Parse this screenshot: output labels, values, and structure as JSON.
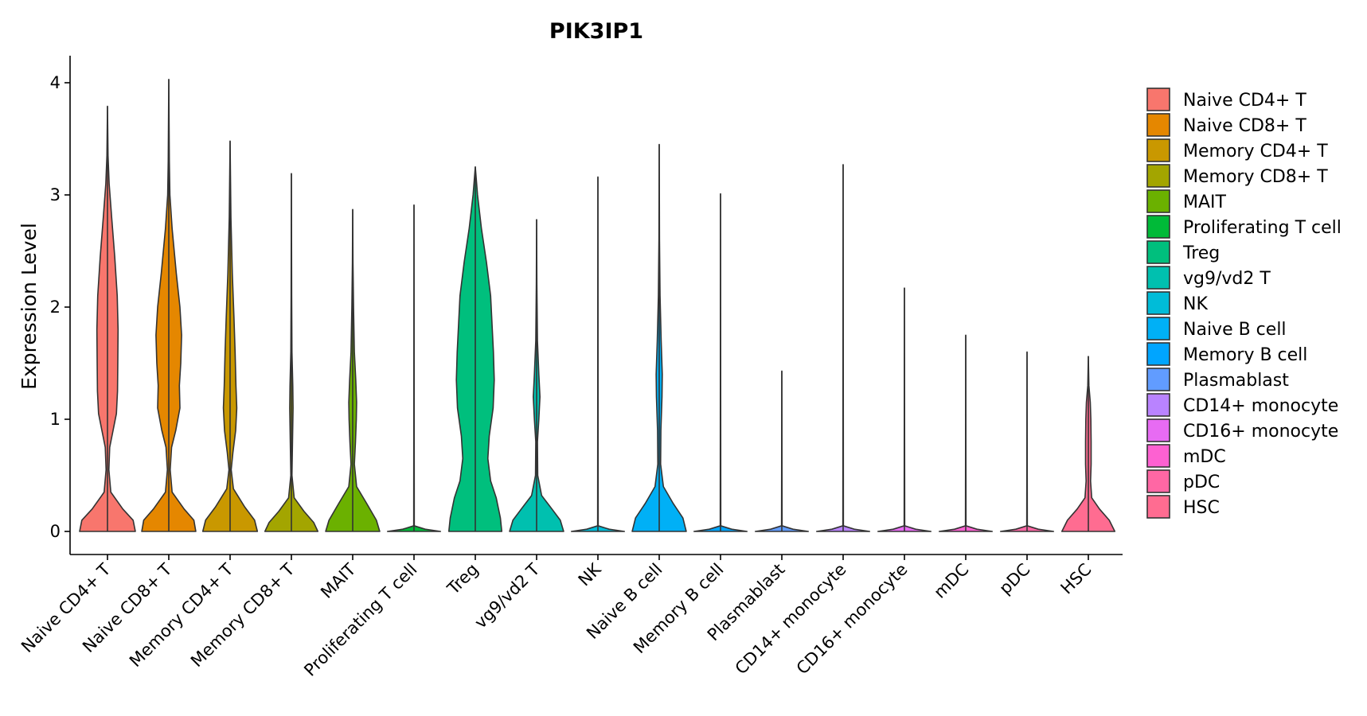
{
  "chart_data": {
    "type": "violin",
    "title": "PIK3IP1",
    "xlabel": "",
    "ylabel": "Expression Level",
    "ylim": [
      -0.2,
      4.22
    ],
    "yticks": [
      0,
      1,
      2,
      3,
      4
    ],
    "grid": false,
    "legend_position": "right",
    "categories": [
      "Naive CD4+ T",
      "Naive CD8+ T",
      "Memory CD4+ T",
      "Memory CD8+ T",
      "MAIT",
      "Proliferating T cell",
      "Treg",
      "vg9/vd2 T",
      "NK",
      "Naive B cell",
      "Memory B cell",
      "Plasmablast",
      "CD14+ monocyte",
      "CD16+ monocyte",
      "mDC",
      "pDC",
      "HSC"
    ],
    "colors": [
      "#F8766D",
      "#E58700",
      "#C99800",
      "#A3A500",
      "#6BB100",
      "#00BA38",
      "#00BF7D",
      "#00C0AF",
      "#00BCD8",
      "#00B0F6",
      "#00A5FF",
      "#619CFF",
      "#B983FF",
      "#E76BF3",
      "#FD61D1",
      "#FF67A4",
      "#FF6C91"
    ],
    "series": [
      {
        "name": "Naive CD4+ T",
        "max": 3.79,
        "profile": [
          [
            0,
            1.0
          ],
          [
            0.1,
            0.92
          ],
          [
            0.2,
            0.55
          ],
          [
            0.35,
            0.12
          ],
          [
            0.55,
            0.05
          ],
          [
            0.75,
            0.08
          ],
          [
            0.9,
            0.2
          ],
          [
            1.05,
            0.32
          ],
          [
            1.25,
            0.36
          ],
          [
            1.5,
            0.37
          ],
          [
            1.8,
            0.38
          ],
          [
            2.1,
            0.35
          ],
          [
            2.45,
            0.26
          ],
          [
            2.8,
            0.15
          ],
          [
            3.1,
            0.06
          ],
          [
            3.35,
            0.02
          ],
          [
            3.79,
            0.0
          ]
        ]
      },
      {
        "name": "Naive CD8+ T",
        "max": 4.03,
        "profile": [
          [
            0,
            0.97
          ],
          [
            0.1,
            0.9
          ],
          [
            0.2,
            0.55
          ],
          [
            0.35,
            0.12
          ],
          [
            0.55,
            0.05
          ],
          [
            0.75,
            0.1
          ],
          [
            0.9,
            0.25
          ],
          [
            1.1,
            0.4
          ],
          [
            1.3,
            0.38
          ],
          [
            1.5,
            0.43
          ],
          [
            1.75,
            0.46
          ],
          [
            2.0,
            0.4
          ],
          [
            2.3,
            0.27
          ],
          [
            2.7,
            0.12
          ],
          [
            3.0,
            0.04
          ],
          [
            3.3,
            0.02
          ],
          [
            4.03,
            0.0
          ]
        ]
      },
      {
        "name": "Memory CD4+ T",
        "max": 3.48,
        "profile": [
          [
            0,
            0.98
          ],
          [
            0.1,
            0.88
          ],
          [
            0.22,
            0.52
          ],
          [
            0.38,
            0.12
          ],
          [
            0.55,
            0.04
          ],
          [
            0.7,
            0.1
          ],
          [
            0.9,
            0.2
          ],
          [
            1.1,
            0.24
          ],
          [
            1.3,
            0.21
          ],
          [
            1.6,
            0.18
          ],
          [
            1.9,
            0.14
          ],
          [
            2.3,
            0.08
          ],
          [
            2.8,
            0.03
          ],
          [
            3.48,
            0.0
          ]
        ]
      },
      {
        "name": "Memory CD8+ T",
        "max": 3.19,
        "profile": [
          [
            0,
            0.95
          ],
          [
            0.08,
            0.8
          ],
          [
            0.18,
            0.45
          ],
          [
            0.3,
            0.1
          ],
          [
            0.5,
            0.02
          ],
          [
            0.8,
            0.04
          ],
          [
            1.1,
            0.06
          ],
          [
            1.3,
            0.05
          ],
          [
            1.6,
            0.02
          ],
          [
            2.1,
            0.01
          ],
          [
            3.19,
            0.0
          ]
        ]
      },
      {
        "name": "MAIT",
        "max": 2.87,
        "profile": [
          [
            0,
            0.97
          ],
          [
            0.1,
            0.85
          ],
          [
            0.25,
            0.5
          ],
          [
            0.4,
            0.14
          ],
          [
            0.6,
            0.06
          ],
          [
            0.8,
            0.1
          ],
          [
            1.0,
            0.13
          ],
          [
            1.15,
            0.14
          ],
          [
            1.35,
            0.11
          ],
          [
            1.6,
            0.06
          ],
          [
            2.0,
            0.03
          ],
          [
            2.4,
            0.01
          ],
          [
            2.87,
            0.0
          ]
        ]
      },
      {
        "name": "Proliferating T cell",
        "max": 2.91,
        "profile": [
          [
            0,
            0.95
          ],
          [
            0.02,
            0.4
          ],
          [
            0.05,
            0.01
          ],
          [
            2.91,
            0.0
          ]
        ]
      },
      {
        "name": "Treg",
        "max": 3.25,
        "profile": [
          [
            0,
            0.95
          ],
          [
            0.12,
            0.9
          ],
          [
            0.3,
            0.75
          ],
          [
            0.45,
            0.55
          ],
          [
            0.65,
            0.45
          ],
          [
            0.85,
            0.5
          ],
          [
            1.1,
            0.64
          ],
          [
            1.35,
            0.68
          ],
          [
            1.6,
            0.65
          ],
          [
            1.85,
            0.6
          ],
          [
            2.1,
            0.55
          ],
          [
            2.4,
            0.4
          ],
          [
            2.7,
            0.22
          ],
          [
            3.0,
            0.08
          ],
          [
            3.25,
            0.0
          ]
        ]
      },
      {
        "name": "vg9/vd2 T",
        "max": 2.78,
        "profile": [
          [
            0,
            0.97
          ],
          [
            0.1,
            0.85
          ],
          [
            0.2,
            0.55
          ],
          [
            0.32,
            0.18
          ],
          [
            0.5,
            0.04
          ],
          [
            0.8,
            0.03
          ],
          [
            1.0,
            0.08
          ],
          [
            1.2,
            0.12
          ],
          [
            1.4,
            0.08
          ],
          [
            1.7,
            0.03
          ],
          [
            2.2,
            0.01
          ],
          [
            2.78,
            0.0
          ]
        ]
      },
      {
        "name": "NK",
        "max": 3.16,
        "profile": [
          [
            0,
            0.95
          ],
          [
            0.02,
            0.4
          ],
          [
            0.05,
            0.01
          ],
          [
            3.16,
            0.0
          ]
        ]
      },
      {
        "name": "Naive B cell",
        "max": 3.45,
        "profile": [
          [
            0,
            0.97
          ],
          [
            0.12,
            0.85
          ],
          [
            0.25,
            0.5
          ],
          [
            0.4,
            0.15
          ],
          [
            0.6,
            0.05
          ],
          [
            0.9,
            0.06
          ],
          [
            1.2,
            0.1
          ],
          [
            1.4,
            0.11
          ],
          [
            1.7,
            0.07
          ],
          [
            2.1,
            0.03
          ],
          [
            2.6,
            0.01
          ],
          [
            3.45,
            0.0
          ]
        ]
      },
      {
        "name": "Memory B cell",
        "max": 3.01,
        "profile": [
          [
            0,
            0.95
          ],
          [
            0.02,
            0.4
          ],
          [
            0.05,
            0.01
          ],
          [
            3.01,
            0.0
          ]
        ]
      },
      {
        "name": "Plasmablast",
        "max": 1.43,
        "profile": [
          [
            0,
            0.95
          ],
          [
            0.02,
            0.4
          ],
          [
            0.05,
            0.01
          ],
          [
            1.43,
            0.0
          ]
        ]
      },
      {
        "name": "CD14+ monocyte",
        "max": 3.27,
        "profile": [
          [
            0,
            0.95
          ],
          [
            0.02,
            0.4
          ],
          [
            0.05,
            0.01
          ],
          [
            3.27,
            0.0
          ]
        ]
      },
      {
        "name": "CD16+ monocyte",
        "max": 2.17,
        "profile": [
          [
            0,
            0.95
          ],
          [
            0.02,
            0.4
          ],
          [
            0.05,
            0.01
          ],
          [
            2.17,
            0.0
          ]
        ]
      },
      {
        "name": "mDC",
        "max": 1.75,
        "profile": [
          [
            0,
            0.95
          ],
          [
            0.02,
            0.4
          ],
          [
            0.05,
            0.01
          ],
          [
            1.75,
            0.0
          ]
        ]
      },
      {
        "name": "pDC",
        "max": 1.6,
        "profile": [
          [
            0,
            0.95
          ],
          [
            0.02,
            0.4
          ],
          [
            0.05,
            0.01
          ],
          [
            1.6,
            0.0
          ]
        ]
      },
      {
        "name": "HSC",
        "max": 1.56,
        "profile": [
          [
            0,
            0.95
          ],
          [
            0.1,
            0.75
          ],
          [
            0.2,
            0.4
          ],
          [
            0.3,
            0.12
          ],
          [
            0.45,
            0.08
          ],
          [
            0.6,
            0.1
          ],
          [
            0.8,
            0.1
          ],
          [
            1.0,
            0.09
          ],
          [
            1.15,
            0.07
          ],
          [
            1.3,
            0.02
          ],
          [
            1.56,
            0.0
          ]
        ]
      }
    ]
  }
}
